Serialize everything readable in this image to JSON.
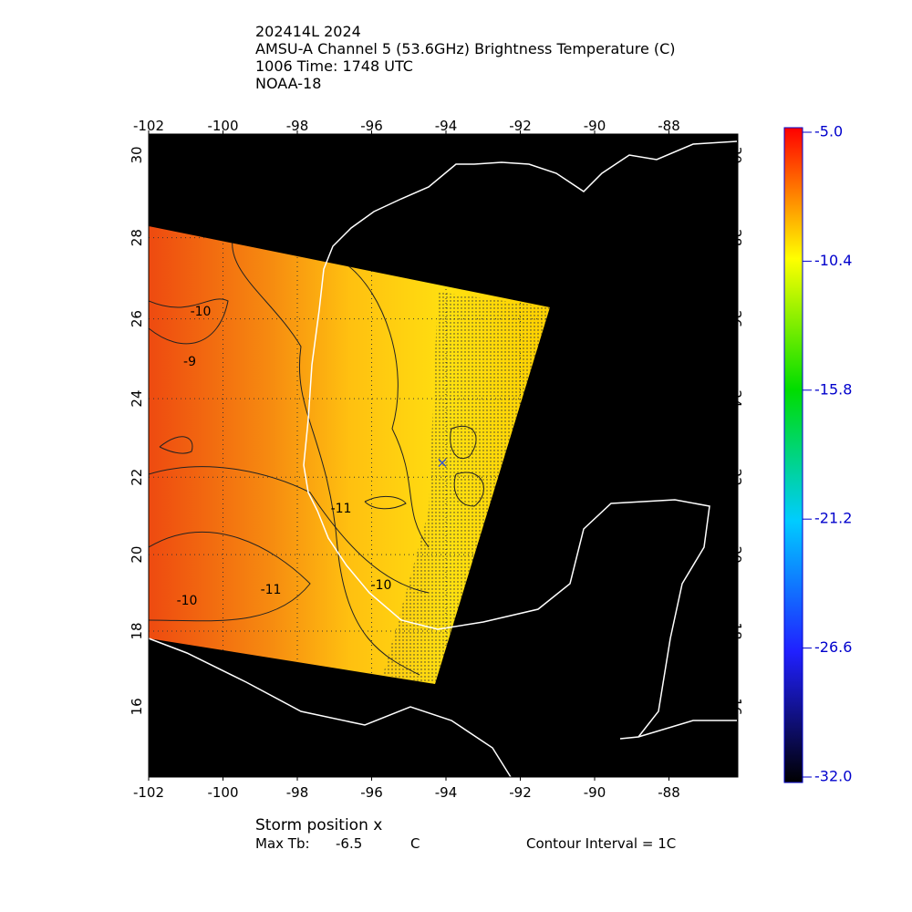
{
  "header": {
    "lines": [
      "202414L 2024",
      "AMSU-A Channel 5 (53.6GHz) Brightness Temperature (C)",
      "1006 Time: 1748 UTC",
      "NOAA-18"
    ]
  },
  "map": {
    "lon_ticks": [
      -102,
      -100,
      -98,
      -96,
      -94,
      -92,
      -90,
      -88
    ],
    "lat_ticks": [
      30,
      28,
      26,
      24,
      22,
      20,
      18,
      16
    ],
    "contour_labels": [
      "-10",
      "-9",
      "-11",
      "-11",
      "-10",
      "-10"
    ]
  },
  "colorbar": {
    "ticks": [
      {
        "value": -5,
        "label": "-5.0"
      },
      {
        "value": -10.4,
        "label": "-10.4"
      },
      {
        "value": -15.8,
        "label": "-15.8"
      },
      {
        "value": -21.2,
        "label": "-21.2"
      },
      {
        "value": -26.6,
        "label": "-26.6"
      },
      {
        "value": -32,
        "label": "-32.0"
      }
    ]
  },
  "footer": {
    "storm": "Storm position x",
    "max_tb_label": "Max Tb:",
    "max_tb": "-6.5",
    "max_tb_unit": "C",
    "contour": "Contour Interval = 1C"
  }
}
